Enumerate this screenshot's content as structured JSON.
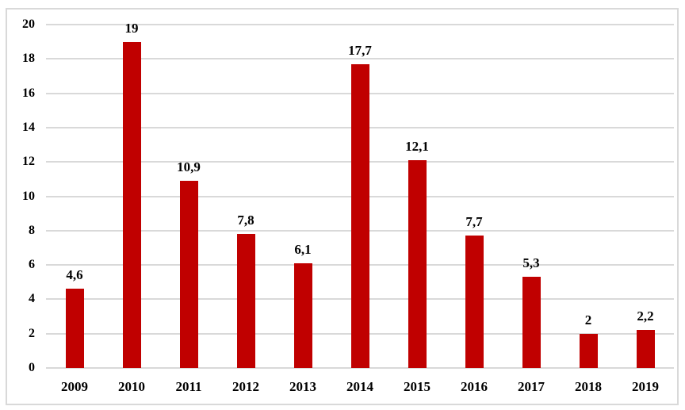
{
  "chart_data": {
    "type": "bar",
    "title": "",
    "xlabel": "",
    "ylabel": "",
    "categories": [
      "2009",
      "2010",
      "2011",
      "2012",
      "2013",
      "2014",
      "2015",
      "2016",
      "2017",
      "2018",
      "2019"
    ],
    "values": [
      4.6,
      19,
      10.9,
      7.8,
      6.1,
      17.7,
      12.1,
      7.7,
      5.3,
      2,
      2.2
    ],
    "value_labels": [
      "4,6",
      "19",
      "10,9",
      "7,8",
      "6,1",
      "17,7",
      "12,1",
      "7,7",
      "5,3",
      "2",
      "2,2"
    ],
    "ylim": [
      0,
      20
    ],
    "ytick_step": 2,
    "ytick_labels": [
      "0",
      "2",
      "4",
      "6",
      "8",
      "10",
      "12",
      "14",
      "16",
      "18",
      "20"
    ],
    "grid": true,
    "legend_position": "none",
    "decimal_separator": ",",
    "colors": {
      "bar": "#C00000",
      "gridline": "#D9D9D9",
      "frame_border": "#D9D9D9",
      "label_text": "#000000",
      "background": "#FFFFFF"
    }
  }
}
